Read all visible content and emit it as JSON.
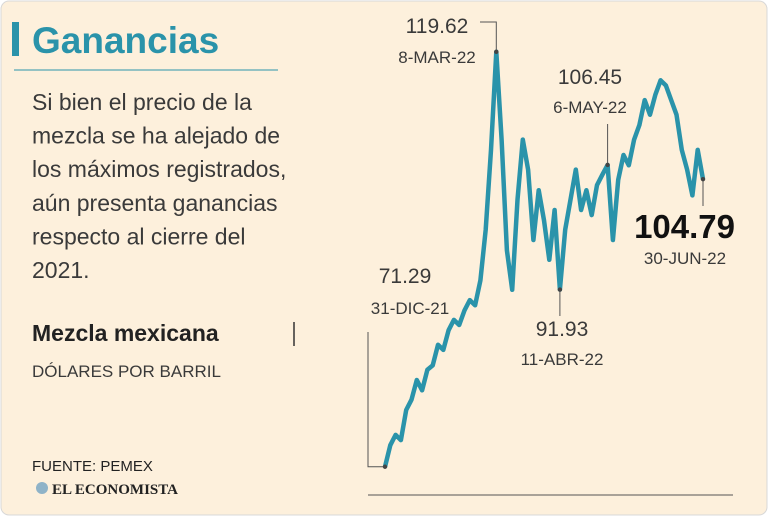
{
  "chart_data": {
    "type": "line",
    "title": "Ganancias",
    "text": [
      "Si bien el precio de la",
      "mezcla se ha alejado de",
      "los máximos registrados,",
      "aún presenta ganancias",
      "respecto al cierre del",
      "2021."
    ],
    "subtitle": "Mezcla mexicana",
    "unit": "DÓLARES POR BARRIL",
    "source": "FUENTE: PEMEX",
    "brand": "EL ECONOMISTA",
    "color": "#2a93aa",
    "ylim": [
      68,
      121
    ],
    "categories": [
      "31-DIC-21",
      null,
      null,
      null,
      null,
      null,
      null,
      null,
      null,
      null,
      null,
      null,
      null,
      null,
      null,
      null,
      null,
      null,
      null,
      null,
      null,
      "8-MAR-22",
      null,
      null,
      null,
      null,
      null,
      null,
      null,
      null,
      null,
      null,
      null,
      "11-ABR-22",
      null,
      null,
      null,
      null,
      null,
      null,
      null,
      null,
      "6-MAY-22",
      null,
      null,
      null,
      null,
      null,
      null,
      null,
      null,
      null,
      null,
      null,
      null,
      null,
      null,
      null,
      null,
      null,
      "30-JUN-22"
    ],
    "values": [
      71.29,
      73.8,
      75.0,
      74.4,
      77.9,
      79.1,
      81.4,
      80.2,
      82.6,
      83.1,
      85.5,
      84.9,
      87.2,
      88.4,
      87.8,
      89.5,
      90.7,
      90.1,
      93.0,
      98.9,
      108.2,
      119.62,
      109.4,
      96.5,
      91.9,
      102.4,
      109.4,
      105.9,
      97.7,
      103.5,
      100.0,
      95.4,
      101.2,
      91.93,
      98.9,
      102.4,
      105.9,
      101.2,
      103.5,
      100.6,
      104.1,
      105.3,
      106.45,
      97.7,
      104.7,
      107.6,
      106.4,
      109.4,
      111.1,
      114.0,
      112.3,
      114.6,
      116.3,
      115.7,
      114.0,
      112.3,
      108.2,
      105.9,
      102.9,
      108.2,
      104.79
    ]
  }
}
